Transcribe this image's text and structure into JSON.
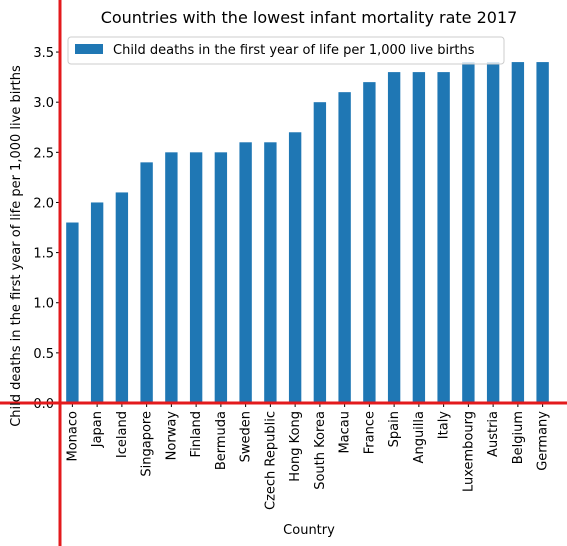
{
  "chart_data": {
    "type": "bar",
    "title": "Countries with the lowest infant mortality rate 2017",
    "xlabel": "Country",
    "ylabel": "Child deaths in the first year of life per 1,000 live births",
    "ylim": [
      0,
      3.7
    ],
    "yticks": [
      "0.0",
      "0.5",
      "1.0",
      "1.5",
      "2.0",
      "2.5",
      "3.0",
      "3.5"
    ],
    "legend_position": "top-left",
    "series": [
      {
        "name": "Child deaths in the first year of life per 1,000 live births",
        "color": "#1f77b4",
        "values": [
          1.8,
          2.0,
          2.1,
          2.4,
          2.5,
          2.5,
          2.5,
          2.6,
          2.6,
          2.7,
          3.0,
          3.1,
          3.2,
          3.3,
          3.3,
          3.3,
          3.4,
          3.4,
          3.4,
          3.4
        ]
      }
    ],
    "categories": [
      "Monaco",
      "Japan",
      "Iceland",
      "Singapore",
      "Norway",
      "Finland",
      "Bermuda",
      "Sweden",
      "Czech Republic",
      "Hong Kong",
      "South Korea",
      "Macau",
      "France",
      "Spain",
      "Anguilla",
      "Italy",
      "Luxembourg",
      "Austria",
      "Belgium",
      "Germany"
    ],
    "axis_color": "#e31a1c"
  }
}
